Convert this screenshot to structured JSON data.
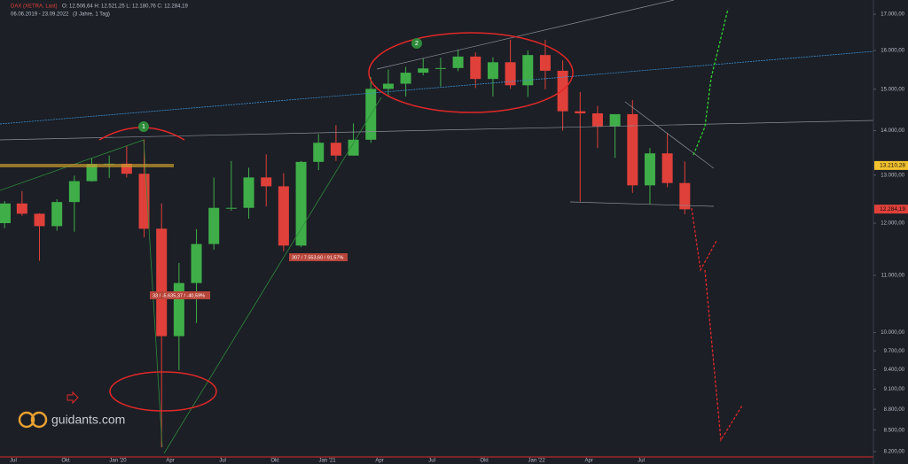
{
  "header": {
    "symbol": "DAX (XETRA, Last)",
    "ohlc": "O: 12.506,64  H: 12.521,25  L: 12.180,76  C: 12.284,19",
    "range": "06.06.2019 - 23.09.2022",
    "period": "(3 Jahre, 1 Tag)"
  },
  "annotations": {
    "gain": "307 / 7.553,60 / 91,57%",
    "loss": "33 / -5.635,37 / -40,59%",
    "marker_1": "1",
    "marker_2": "2"
  },
  "logo": "guidants.com",
  "chart_data": {
    "type": "candlestick",
    "log_scale": true,
    "up_color": "#3fae49",
    "down_color": "#e0403a",
    "categories": [
      null,
      "Jul",
      null,
      null,
      "Okt",
      null,
      null,
      "Jan '20",
      null,
      null,
      "Apr",
      null,
      null,
      "Jul",
      null,
      null,
      "Okt",
      null,
      null,
      "Jan '21",
      null,
      null,
      "Apr",
      null,
      null,
      "Jul",
      null,
      null,
      "Okt",
      null,
      null,
      "Jan '22",
      null,
      null,
      "Apr",
      null,
      null,
      "Jul",
      null,
      null
    ],
    "open": [
      12000,
      12400,
      12190,
      11940,
      12430,
      12870,
      13240,
      13250,
      13030,
      11890,
      9940,
      10860,
      11590,
      12310,
      12310,
      12950,
      12760,
      11560,
      13290,
      13720,
      13430,
      13790,
      15010,
      15140,
      15420,
      15530,
      15540,
      15840,
      15260,
      15690,
      15100,
      15880,
      15470,
      14460,
      14410,
      14100,
      14390,
      12780,
      13480,
      12830
    ],
    "high": [
      12450,
      12660,
      12200,
      12490,
      12990,
      13370,
      13430,
      13640,
      13800,
      12400,
      11230,
      11880,
      12950,
      13310,
      13160,
      13460,
      13040,
      13310,
      13920,
      14130,
      14170,
      15310,
      15500,
      15570,
      15800,
      15810,
      16030,
      15950,
      15820,
      16290,
      16000,
      16290,
      15740,
      14930,
      14590,
      14380,
      14730,
      13600,
      13950,
      13300
    ],
    "low": [
      11900,
      12150,
      11270,
      11850,
      11830,
      12860,
      12940,
      12950,
      11720,
      8260,
      9390,
      10160,
      11480,
      12250,
      12090,
      12340,
      11450,
      11530,
      13110,
      13310,
      13430,
      13720,
      14810,
      14820,
      15350,
      15070,
      15460,
      15030,
      14820,
      15010,
      14810,
      15000,
      14000,
      12440,
      13600,
      13380,
      12620,
      12390,
      12740,
      12180
    ],
    "close": [
      12400,
      12190,
      11940,
      12430,
      12870,
      13240,
      13250,
      13030,
      11890,
      9940,
      10860,
      11590,
      12310,
      12310,
      12950,
      12760,
      11560,
      13290,
      13720,
      13430,
      13790,
      15010,
      15140,
      15420,
      15530,
      15540,
      15840,
      15260,
      15690,
      15100,
      15880,
      15470,
      14460,
      14410,
      14100,
      14390,
      12780,
      13480,
      12830,
      12280
    ],
    "ylim": [
      8128,
      17406
    ],
    "yticks": [
      {
        "value": 8200,
        "label": "8.200,00"
      },
      {
        "value": 8500,
        "label": "8.500,00"
      },
      {
        "value": 8800,
        "label": "8.800,00"
      },
      {
        "value": 9100,
        "label": "9.100,00"
      },
      {
        "value": 9400,
        "label": "9.400,00"
      },
      {
        "value": 9700,
        "label": "9.700,00"
      },
      {
        "value": 10000,
        "label": "10.000,00"
      },
      {
        "value": 11000,
        "label": "11.000,00"
      },
      {
        "value": 12000,
        "label": "12.000,00"
      },
      {
        "value": 13000,
        "label": "13.000,00"
      },
      {
        "value": 14000,
        "label": "14.000,00"
      },
      {
        "value": 15000,
        "label": "15.000,00"
      },
      {
        "value": 16000,
        "label": "16.000,00"
      },
      {
        "value": 17000,
        "label": "17.000,00"
      }
    ],
    "price_labels": [
      {
        "value": 13210.28,
        "label": "13.210,28",
        "color": "#f2c12e"
      },
      {
        "value": 12284.19,
        "label": "12.284,19",
        "color": "#e0403a"
      }
    ]
  }
}
